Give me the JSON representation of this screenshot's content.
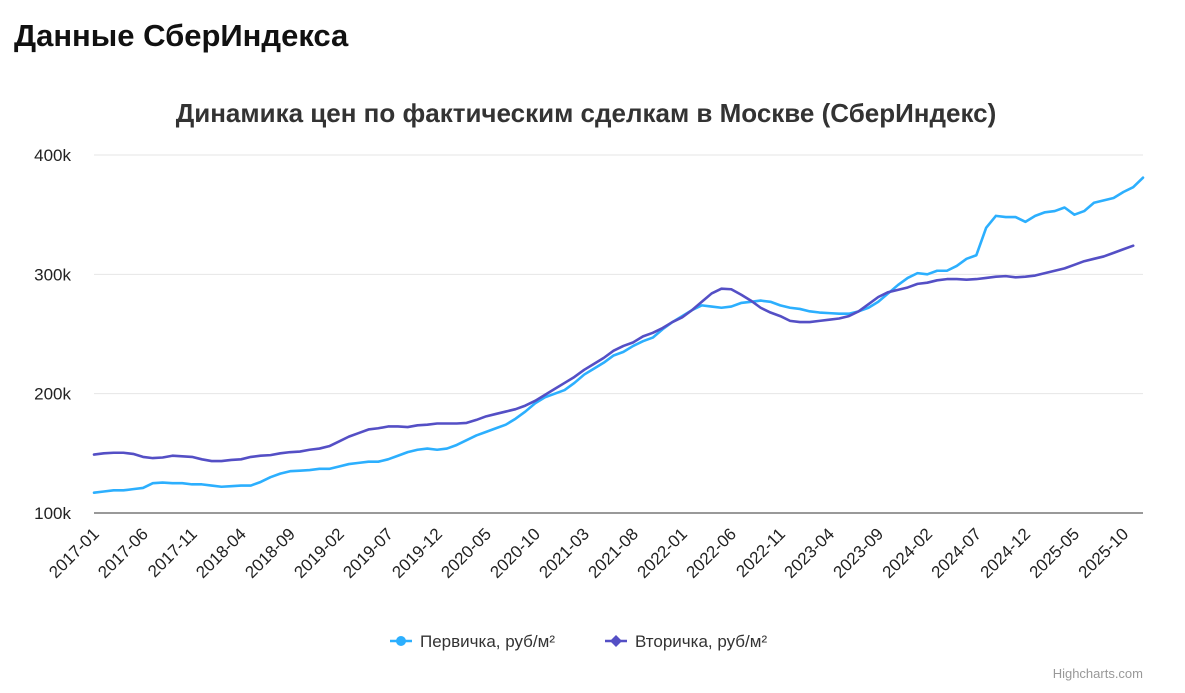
{
  "page": {
    "title": "Данные СберИндекса"
  },
  "credits": "Highcharts.com",
  "chart_data": {
    "type": "line",
    "title": "Динамика цен по фактическим сделкам в Москве (СберИндекс)",
    "ylim": [
      100000,
      400000
    ],
    "y_ticks": [
      100000,
      200000,
      300000,
      400000
    ],
    "y_tick_labels": [
      "100k",
      "200k",
      "300k",
      "400k"
    ],
    "x_tick_labels": [
      "2017-01",
      "2017-06",
      "2017-11",
      "2018-04",
      "2018-09",
      "2019-02",
      "2019-07",
      "2019-12",
      "2020-05",
      "2020-10",
      "2021-03",
      "2021-08",
      "2022-01",
      "2022-06",
      "2022-11",
      "2023-04",
      "2023-09",
      "2024-02",
      "2024-07",
      "2024-12",
      "2025-05",
      "2025-10"
    ],
    "x_start": "2017-01",
    "grid": true,
    "legend_position": "bottom-center",
    "series": [
      {
        "name": "Первичка, руб/м²",
        "color": "#2caffe",
        "values": [
          117000,
          118000,
          119000,
          119000,
          120000,
          121000,
          125000,
          125500,
          125000,
          125000,
          124000,
          124000,
          123000,
          122000,
          122500,
          123000,
          123000,
          126000,
          130000,
          133000,
          135000,
          135500,
          136000,
          137000,
          137000,
          139000,
          141000,
          142000,
          143000,
          143000,
          145000,
          148000,
          151000,
          153000,
          154000,
          153000,
          154000,
          157000,
          161000,
          165000,
          168000,
          171000,
          174000,
          179000,
          185000,
          192000,
          197000,
          200000,
          203000,
          209000,
          216000,
          221000,
          226000,
          232000,
          235000,
          240000,
          244000,
          247000,
          254000,
          260000,
          265000,
          270000,
          274000,
          273000,
          272000,
          273000,
          276000,
          277000,
          278000,
          277000,
          274000,
          272000,
          271000,
          269000,
          268000,
          267500,
          267000,
          267000,
          269000,
          272000,
          277000,
          284000,
          291000,
          297000,
          301000,
          300000,
          303000,
          303000,
          307000,
          313000,
          316000,
          339000,
          349000,
          348000,
          348000,
          344000,
          349000,
          352000,
          353000,
          356000,
          350000,
          353000,
          360000,
          362000,
          364000,
          369000,
          373000,
          381000
        ]
      },
      {
        "name": "Вторичка, руб/м²",
        "color": "#544fc5",
        "values": [
          149000,
          150000,
          150500,
          150500,
          149500,
          147000,
          146000,
          146500,
          148000,
          147500,
          147000,
          145000,
          143500,
          143500,
          144500,
          145000,
          147000,
          148000,
          148500,
          150000,
          151000,
          151500,
          153000,
          154000,
          156000,
          160000,
          164000,
          167000,
          170000,
          171000,
          172500,
          172500,
          172000,
          173500,
          174000,
          175000,
          175000,
          175000,
          175500,
          178000,
          181000,
          183000,
          185000,
          187000,
          190000,
          194000,
          199000,
          204000,
          209000,
          214000,
          220000,
          225000,
          230000,
          236000,
          240000,
          243000,
          248000,
          251000,
          255000,
          260000,
          264000,
          270000,
          277000,
          284000,
          288000,
          287500,
          283000,
          278000,
          272000,
          268000,
          265000,
          261000,
          260000,
          260000,
          261000,
          262000,
          263000,
          265000,
          269000,
          275000,
          281000,
          285000,
          287000,
          289000,
          292000,
          293000,
          295000,
          296000,
          296000,
          295500,
          296000,
          297000,
          298000,
          298500,
          297500,
          298000,
          299000,
          301000,
          303000,
          305000,
          308000,
          311000,
          313000,
          315000,
          318000,
          321000,
          324000
        ]
      }
    ]
  }
}
